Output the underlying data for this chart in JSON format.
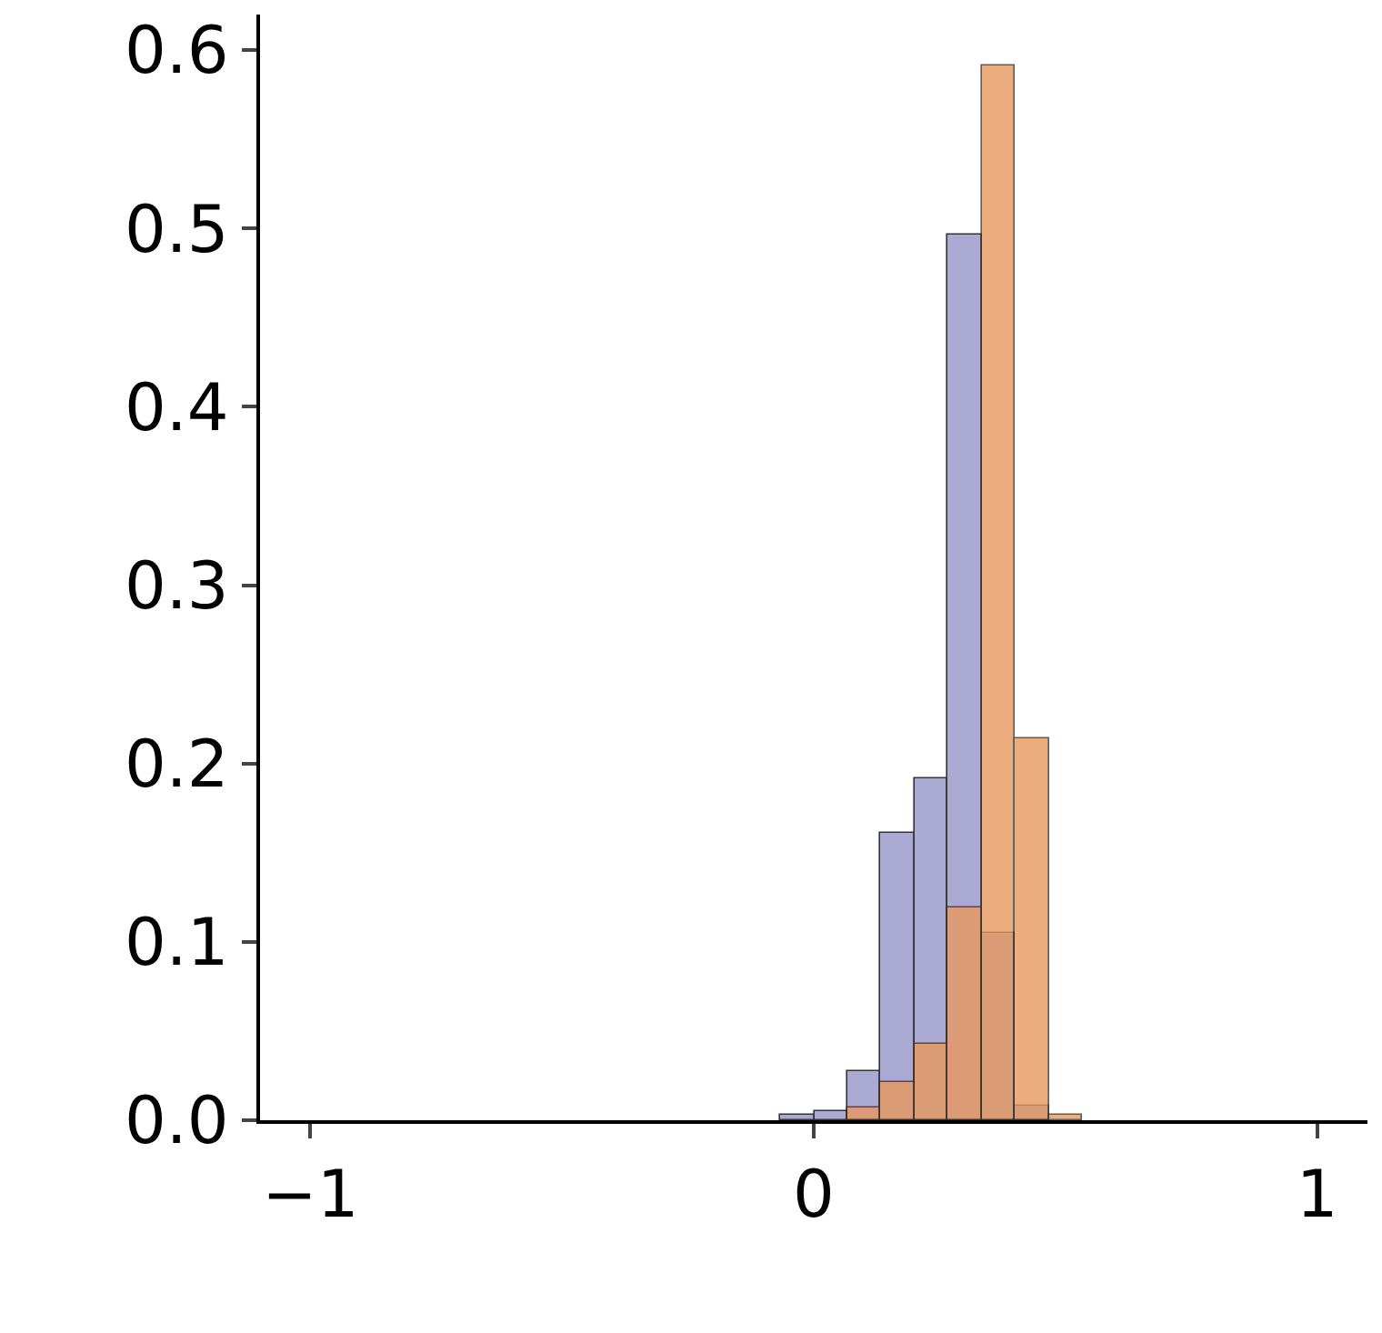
{
  "chart_data": {
    "type": "histogram",
    "bins": [
      -0.067,
      0,
      0.067,
      0.133,
      0.2,
      0.267,
      0.333,
      0.4,
      0.467,
      0.533
    ],
    "series": [
      {
        "color": "#aaaad2",
        "values": [
          0.003,
          0.005,
          0.028,
          0.161,
          0.192,
          0.497,
          0.105,
          0.008,
          null
        ]
      },
      {
        "color": "#e8995e",
        "values": [
          null,
          null,
          0.007,
          0.021,
          0.043,
          0.119,
          0.591,
          0.214,
          0.003
        ]
      }
    ],
    "xlim": [
      -1.1,
      1.1
    ],
    "xticks": [
      {
        "value": -1,
        "label": "−1"
      },
      0,
      1
    ],
    "ylim": [
      0,
      0.62
    ],
    "yticks": [
      {
        "value": 0,
        "label": "0.0"
      },
      0.1,
      0.2,
      0.3,
      0.4,
      0.5,
      0.6
    ],
    "grid": false
  }
}
